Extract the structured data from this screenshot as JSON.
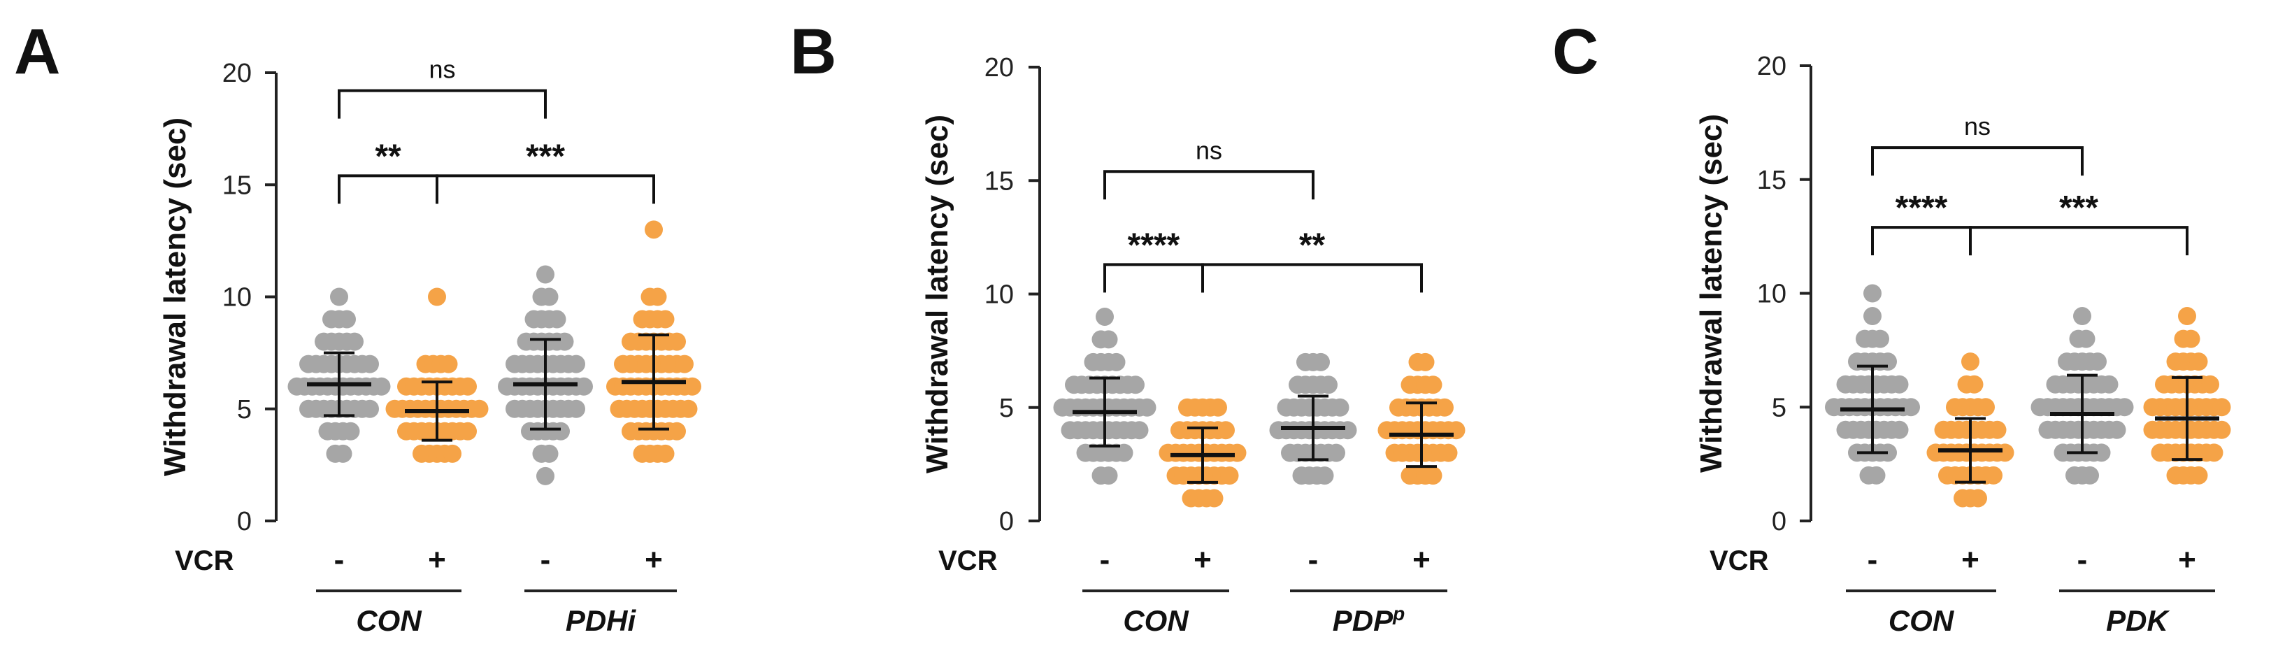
{
  "chart_data": [
    {
      "type": "scatter",
      "panel": "A",
      "ylabel": "Withdrawal latency (sec)",
      "ylim": [
        0,
        20
      ],
      "yticks": [
        0,
        5,
        10,
        15,
        20
      ],
      "treatment_label": "VCR",
      "treatment_signs": [
        "-",
        "+",
        "-",
        "+"
      ],
      "groups": [
        {
          "name": "CON",
          "italic_parts": [
            {
              "t": "CON"
            }
          ]
        },
        {
          "name": "PDHi",
          "italic_parts": [
            {
              "t": "PDHi"
            }
          ]
        }
      ],
      "series": [
        {
          "name": "CON -",
          "color": "#a6a6a6",
          "mean": 6.1,
          "sd": 1.4,
          "points": [
            {
              "v": 3,
              "n": 2
            },
            {
              "v": 4,
              "n": 4
            },
            {
              "v": 5,
              "n": 9
            },
            {
              "v": 6,
              "n": 12
            },
            {
              "v": 7,
              "n": 9
            },
            {
              "v": 8,
              "n": 5
            },
            {
              "v": 9,
              "n": 3
            },
            {
              "v": 10,
              "n": 1
            }
          ]
        },
        {
          "name": "CON +",
          "color": "#f5a347",
          "mean": 4.9,
          "sd": 1.3,
          "points": [
            {
              "v": 3,
              "n": 5
            },
            {
              "v": 4,
              "n": 9
            },
            {
              "v": 5,
              "n": 12
            },
            {
              "v": 6,
              "n": 9
            },
            {
              "v": 7,
              "n": 4
            },
            {
              "v": 10,
              "n": 1
            }
          ]
        },
        {
          "name": "PDHi -",
          "color": "#a6a6a6",
          "mean": 6.1,
          "sd": 2.0,
          "points": [
            {
              "v": 2,
              "n": 1
            },
            {
              "v": 3,
              "n": 2
            },
            {
              "v": 4,
              "n": 5
            },
            {
              "v": 5,
              "n": 9
            },
            {
              "v": 6,
              "n": 11
            },
            {
              "v": 7,
              "n": 9
            },
            {
              "v": 8,
              "n": 6
            },
            {
              "v": 9,
              "n": 4
            },
            {
              "v": 10,
              "n": 2
            },
            {
              "v": 11,
              "n": 1
            }
          ]
        },
        {
          "name": "PDHi +",
          "color": "#f5a347",
          "mean": 6.2,
          "sd": 2.1,
          "points": [
            {
              "v": 3,
              "n": 4
            },
            {
              "v": 4,
              "n": 7
            },
            {
              "v": 5,
              "n": 10
            },
            {
              "v": 6,
              "n": 11
            },
            {
              "v": 7,
              "n": 9
            },
            {
              "v": 8,
              "n": 7
            },
            {
              "v": 9,
              "n": 4
            },
            {
              "v": 10,
              "n": 2
            },
            {
              "v": 13,
              "n": 1
            }
          ]
        }
      ],
      "comparisons": [
        {
          "from": 0,
          "to": 2,
          "y": 19.2,
          "label": "ns"
        },
        {
          "from": 0,
          "to": 1,
          "y": 15.4,
          "label": "**"
        },
        {
          "from": 1,
          "to": 3,
          "y": 15.4,
          "label": "***"
        }
      ]
    },
    {
      "type": "scatter",
      "panel": "B",
      "ylabel": "Withdrawal latency (sec)",
      "ylim": [
        0,
        20
      ],
      "yticks": [
        0,
        5,
        10,
        15,
        20
      ],
      "treatment_label": "VCR",
      "treatment_signs": [
        "-",
        "+",
        "-",
        "+"
      ],
      "groups": [
        {
          "name": "CON",
          "italic_parts": [
            {
              "t": "CON"
            }
          ]
        },
        {
          "name": "PDPp",
          "italic_parts": [
            {
              "t": "PDP"
            },
            {
              "t": "p",
              "sup": true
            }
          ]
        }
      ],
      "series": [
        {
          "name": "CON -",
          "color": "#a6a6a6",
          "mean": 4.8,
          "sd": 1.5,
          "points": [
            {
              "v": 2,
              "n": 2
            },
            {
              "v": 3,
              "n": 6
            },
            {
              "v": 4,
              "n": 10
            },
            {
              "v": 5,
              "n": 12
            },
            {
              "v": 6,
              "n": 9
            },
            {
              "v": 7,
              "n": 4
            },
            {
              "v": 8,
              "n": 2
            },
            {
              "v": 9,
              "n": 1
            }
          ]
        },
        {
          "name": "CON +",
          "color": "#f5a347",
          "mean": 2.9,
          "sd": 1.2,
          "points": [
            {
              "v": 1,
              "n": 4
            },
            {
              "v": 2,
              "n": 8
            },
            {
              "v": 3,
              "n": 10
            },
            {
              "v": 4,
              "n": 7
            },
            {
              "v": 5,
              "n": 5
            }
          ]
        },
        {
          "name": "PDPp -",
          "color": "#a6a6a6",
          "mean": 4.1,
          "sd": 1.4,
          "points": [
            {
              "v": 2,
              "n": 4
            },
            {
              "v": 3,
              "n": 7
            },
            {
              "v": 4,
              "n": 10
            },
            {
              "v": 5,
              "n": 8
            },
            {
              "v": 6,
              "n": 5
            },
            {
              "v": 7,
              "n": 3
            }
          ]
        },
        {
          "name": "PDPp +",
          "color": "#f5a347",
          "mean": 3.8,
          "sd": 1.4,
          "points": [
            {
              "v": 2,
              "n": 4
            },
            {
              "v": 3,
              "n": 8
            },
            {
              "v": 4,
              "n": 10
            },
            {
              "v": 5,
              "n": 7
            },
            {
              "v": 6,
              "n": 4
            },
            {
              "v": 7,
              "n": 2
            }
          ]
        }
      ],
      "comparisons": [
        {
          "from": 0,
          "to": 2,
          "y": 15.4,
          "label": "ns"
        },
        {
          "from": 0,
          "to": 1,
          "y": 11.3,
          "label": "****"
        },
        {
          "from": 1,
          "to": 3,
          "y": 11.3,
          "label": "**"
        }
      ]
    },
    {
      "type": "scatter",
      "panel": "C",
      "ylabel": "Withdrawal latency (sec)",
      "ylim": [
        0,
        20
      ],
      "yticks": [
        0,
        5,
        10,
        15,
        20
      ],
      "treatment_label": "VCR",
      "treatment_signs": [
        "-",
        "+",
        "-",
        "+"
      ],
      "groups": [
        {
          "name": "CON",
          "italic_parts": [
            {
              "t": "CON"
            }
          ]
        },
        {
          "name": "PDK",
          "italic_parts": [
            {
              "t": "PDK"
            }
          ]
        }
      ],
      "series": [
        {
          "name": "CON -",
          "color": "#a6a6a6",
          "mean": 4.9,
          "sd": 1.9,
          "points": [
            {
              "v": 2,
              "n": 2
            },
            {
              "v": 3,
              "n": 5
            },
            {
              "v": 4,
              "n": 8
            },
            {
              "v": 5,
              "n": 11
            },
            {
              "v": 6,
              "n": 8
            },
            {
              "v": 7,
              "n": 5
            },
            {
              "v": 8,
              "n": 3
            },
            {
              "v": 9,
              "n": 1
            },
            {
              "v": 10,
              "n": 1
            }
          ]
        },
        {
          "name": "CON +",
          "color": "#f5a347",
          "mean": 3.1,
          "sd": 1.4,
          "points": [
            {
              "v": 1,
              "n": 3
            },
            {
              "v": 2,
              "n": 7
            },
            {
              "v": 3,
              "n": 10
            },
            {
              "v": 4,
              "n": 8
            },
            {
              "v": 5,
              "n": 5
            },
            {
              "v": 6,
              "n": 2
            },
            {
              "v": 7,
              "n": 1
            }
          ]
        },
        {
          "name": "PDK -",
          "color": "#a6a6a6",
          "mean": 4.7,
          "sd": 1.7,
          "points": [
            {
              "v": 2,
              "n": 3
            },
            {
              "v": 3,
              "n": 6
            },
            {
              "v": 4,
              "n": 10
            },
            {
              "v": 5,
              "n": 12
            },
            {
              "v": 6,
              "n": 8
            },
            {
              "v": 7,
              "n": 5
            },
            {
              "v": 8,
              "n": 2
            },
            {
              "v": 9,
              "n": 1
            }
          ]
        },
        {
          "name": "PDK +",
          "color": "#f5a347",
          "mean": 4.5,
          "sd": 1.8,
          "points": [
            {
              "v": 2,
              "n": 4
            },
            {
              "v": 3,
              "n": 8
            },
            {
              "v": 4,
              "n": 10
            },
            {
              "v": 5,
              "n": 10
            },
            {
              "v": 6,
              "n": 7
            },
            {
              "v": 7,
              "n": 4
            },
            {
              "v": 8,
              "n": 2
            },
            {
              "v": 9,
              "n": 1
            }
          ]
        }
      ],
      "comparisons": [
        {
          "from": 0,
          "to": 2,
          "y": 16.4,
          "label": "ns"
        },
        {
          "from": 0,
          "to": 1,
          "y": 12.9,
          "label": "****"
        },
        {
          "from": 1,
          "to": 3,
          "y": 12.9,
          "label": "***"
        }
      ]
    }
  ]
}
